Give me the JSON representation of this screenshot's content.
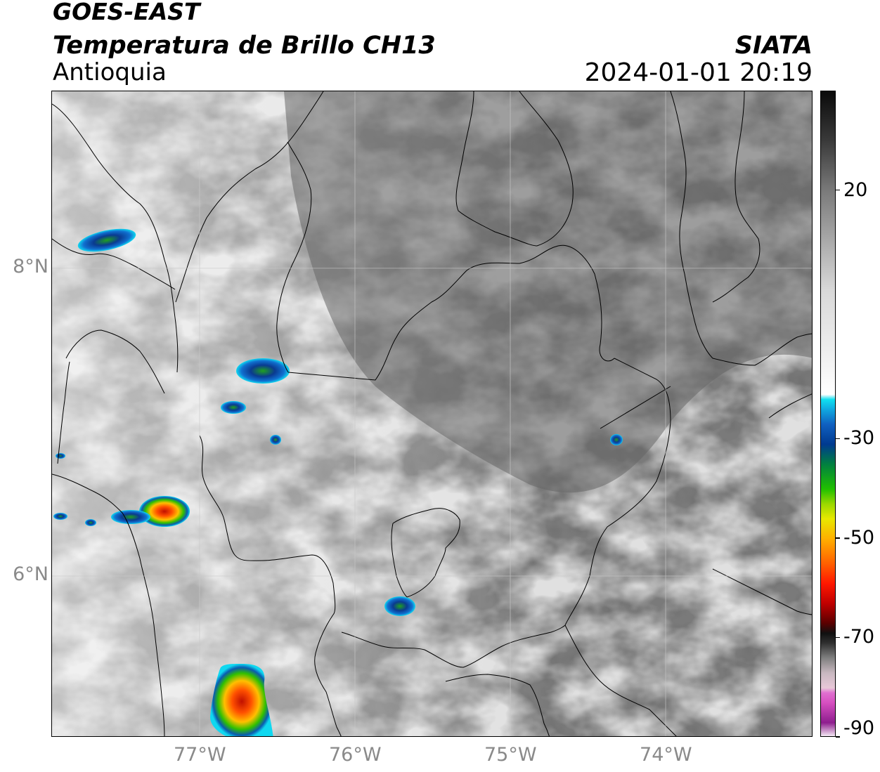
{
  "header": {
    "satellite": "GOES-EAST",
    "product": "Temperatura de Brillo CH13",
    "region": "Antioquia",
    "organization": "SIATA",
    "timestamp": "2024-01-01 20:19"
  },
  "map": {
    "lon_range": [
      -77.95,
      -73.05
    ],
    "lat_range": [
      4.95,
      9.15
    ],
    "lat_ticks": [
      {
        "value": 8,
        "label": "8°N"
      },
      {
        "value": 6,
        "label": "6°N"
      }
    ],
    "lon_ticks": [
      {
        "value": -77,
        "label": "77°W"
      },
      {
        "value": -76,
        "label": "76°W"
      },
      {
        "value": -75,
        "label": "75°W"
      },
      {
        "value": -74,
        "label": "74°W"
      }
    ],
    "gridlines": true,
    "border_color": "#000000",
    "gridline_color": "#bdbdbd"
  },
  "colorbar": {
    "range": [
      -90,
      40
    ],
    "ticks": [
      {
        "value": 20,
        "label": "20"
      },
      {
        "value": -30,
        "label": "-30"
      },
      {
        "value": -50,
        "label": "-50"
      },
      {
        "value": -70,
        "label": "-70"
      },
      {
        "value": -90,
        "label": "-90"
      }
    ],
    "stops": [
      {
        "value": -90,
        "color": "#ffffff"
      },
      {
        "value": -87,
        "color": "#8e1e8e"
      },
      {
        "value": -83,
        "color": "#d64fc0"
      },
      {
        "value": -81,
        "color": "#e070d0"
      },
      {
        "value": -80,
        "color": "#e8c8d8"
      },
      {
        "value": -77,
        "color": "#c8b8c0"
      },
      {
        "value": -74,
        "color": "#808080"
      },
      {
        "value": -71,
        "color": "#303030"
      },
      {
        "value": -69,
        "color": "#101010"
      },
      {
        "value": -67,
        "color": "#5a0000"
      },
      {
        "value": -63,
        "color": "#c00000"
      },
      {
        "value": -59,
        "color": "#ff1800"
      },
      {
        "value": -55,
        "color": "#ff6000"
      },
      {
        "value": -50,
        "color": "#ffb000"
      },
      {
        "value": -46,
        "color": "#e8e800"
      },
      {
        "value": -43,
        "color": "#9ad800"
      },
      {
        "value": -40,
        "color": "#20c000"
      },
      {
        "value": -35,
        "color": "#008040"
      },
      {
        "value": -31,
        "color": "#003a90"
      },
      {
        "value": -27,
        "color": "#1060c0"
      },
      {
        "value": -24,
        "color": "#10a8e0"
      },
      {
        "value": -22,
        "color": "#10e0f0"
      },
      {
        "value": -21,
        "color": "#ffffff"
      },
      {
        "value": 0,
        "color": "#d8d8d8"
      },
      {
        "value": 20,
        "color": "#7a7a7a"
      },
      {
        "value": 30,
        "color": "#3a3a3a"
      },
      {
        "value": 40,
        "color": "#0a0a0a"
      }
    ]
  }
}
